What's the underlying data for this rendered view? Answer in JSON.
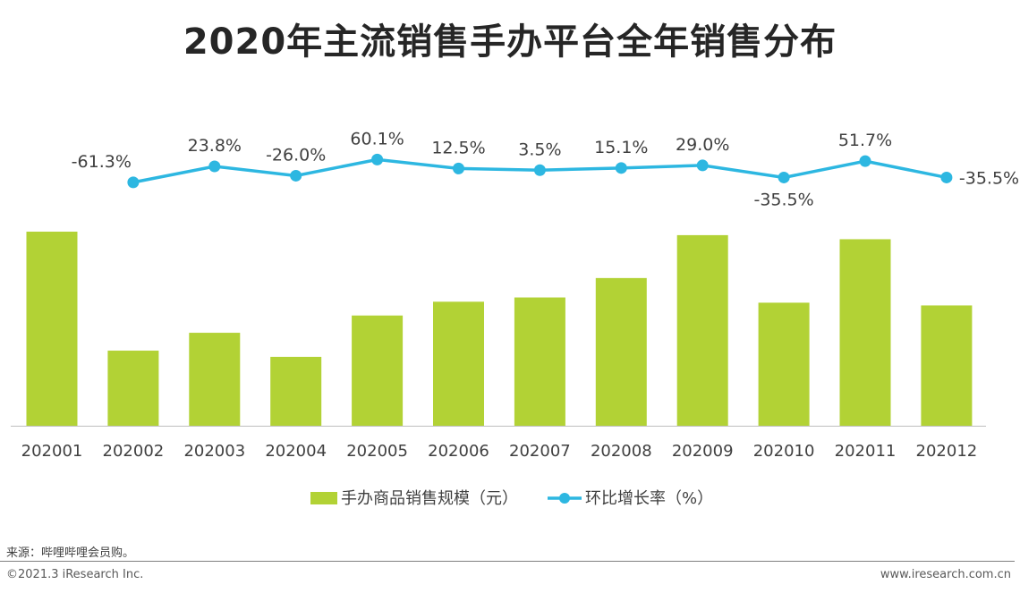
{
  "title": "2020年主流销售手办平台全年销售分布",
  "chart_data": {
    "type": "bar+line",
    "categories": [
      "202001",
      "202002",
      "202003",
      "202004",
      "202005",
      "202006",
      "202007",
      "202008",
      "202009",
      "202010",
      "202011",
      "202012"
    ],
    "series": [
      {
        "name": "手办商品销售规模（元）",
        "type": "bar",
        "color": "#B2D235",
        "values": [
          100,
          38.7,
          47.9,
          35.5,
          56.8,
          63.9,
          66.1,
          76.1,
          98.2,
          63.4,
          96.1,
          62.0
        ]
      },
      {
        "name": "环比增长率（%）",
        "type": "line",
        "color": "#2DB7E1",
        "values": [
          null,
          -61.3,
          23.8,
          -26.0,
          60.1,
          12.5,
          3.5,
          15.1,
          29.0,
          -35.5,
          51.7,
          -35.5
        ],
        "labels": [
          "",
          "-61.3%",
          "23.8%",
          "-26.0%",
          "60.1%",
          "12.5%",
          "3.5%",
          "15.1%",
          "29.0%",
          "-35.5%",
          "51.7%",
          "-35.5%"
        ]
      }
    ],
    "note": "Bar values are relative index (202001 = 100); no value axis is shown."
  },
  "footer": {
    "source": "来源：哔哩哔哩会员购。",
    "copyright": "©2021.3 iResearch Inc.",
    "url": "www.iresearch.com.cn"
  }
}
